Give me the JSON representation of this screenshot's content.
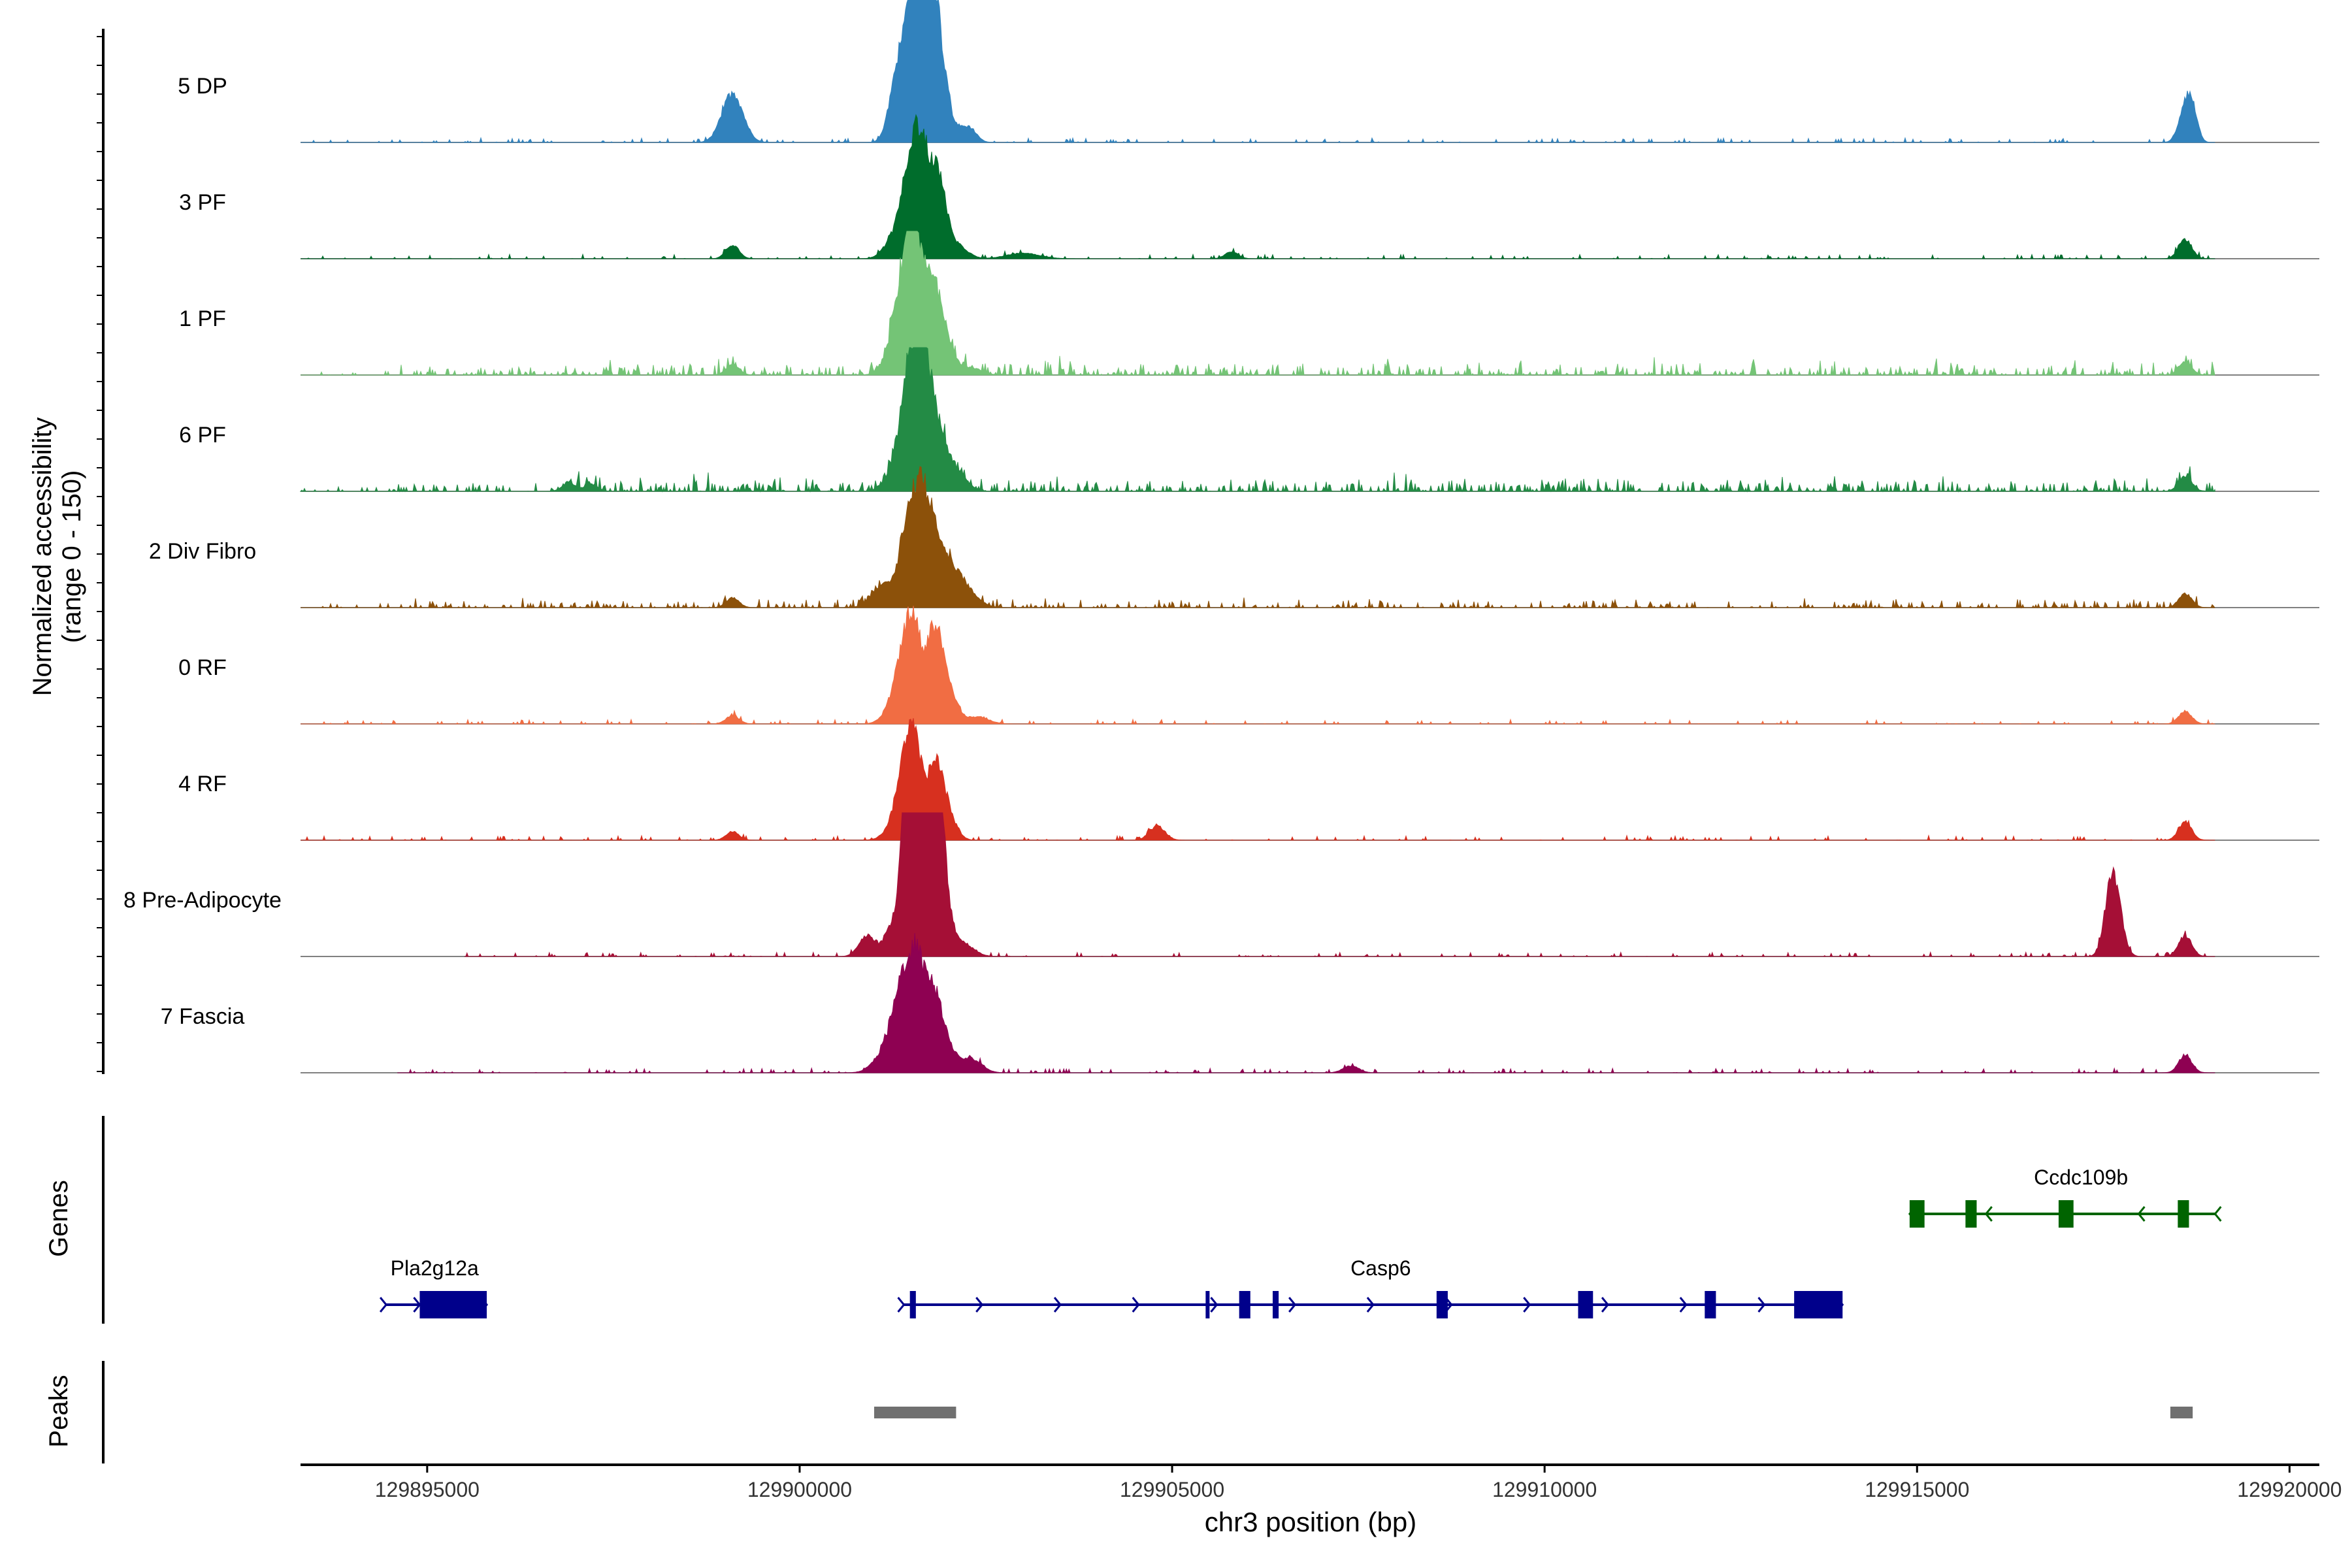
{
  "chart_data": {
    "type": "area",
    "title": "",
    "xlabel": "chr3 position (bp)",
    "ylabel": "Normalized accessibility",
    "ylabel_sub": "(range 0 - 150)",
    "xlim": [
      129893300,
      129920400
    ],
    "ylim": [
      0,
      150
    ],
    "x_ticks": [
      129895000,
      129900000,
      129905000,
      129910000,
      129915000,
      129920000
    ],
    "x_tick_labels": [
      "129895000",
      "129900000",
      "129905000",
      "129910000",
      "129915000",
      "129920000"
    ],
    "grid": false,
    "background": [
      [
        129894600,
        129919000,
        2,
        4,
        11
      ],
      [
        129896800,
        129919000,
        2,
        3,
        17
      ]
    ],
    "series": [
      {
        "name": "5 DP",
        "color": "#3182bd",
        "baseline_start": 129893300,
        "peaks": [
          [
            129899100,
            70,
            16
          ],
          [
            129901300,
            85,
            12
          ],
          [
            129901500,
            148,
            12
          ],
          [
            129901700,
            125,
            10
          ],
          [
            129901650,
            100,
            16
          ],
          [
            129901750,
            110,
            10
          ],
          [
            129901900,
            95,
            10
          ],
          [
            129902100,
            20,
            16
          ],
          [
            129902300,
            14,
            10
          ],
          [
            129918600,
            50,
            10
          ],
          [
            129918700,
            35,
            8
          ]
        ]
      },
      {
        "name": "3 PF",
        "color": "#006d2c",
        "baseline_start": 129893300,
        "peaks": [
          [
            129899100,
            20,
            10
          ],
          [
            129901300,
            35,
            16
          ],
          [
            129901500,
            135,
            12
          ],
          [
            129901650,
            105,
            10
          ],
          [
            129901800,
            75,
            12
          ],
          [
            129901900,
            60,
            10
          ],
          [
            129902100,
            20,
            16
          ],
          [
            129903000,
            8,
            25
          ],
          [
            129905800,
            10,
            10
          ],
          [
            129918600,
            28,
            10
          ]
        ]
      },
      {
        "name": "1 PF",
        "color": "#74c476",
        "baseline_start": 129893300,
        "peaks": [
          [
            129899100,
            15,
            10
          ],
          [
            129901300,
            45,
            16
          ],
          [
            129901450,
            138,
            14
          ],
          [
            129901550,
            95,
            10
          ],
          [
            129901700,
            50,
            10
          ],
          [
            129901800,
            90,
            12
          ],
          [
            129901950,
            45,
            14
          ],
          [
            129902300,
            10,
            16
          ],
          [
            129918600,
            18,
            10
          ]
        ]
      },
      {
        "name": "6 PF",
        "color": "#238b45",
        "baseline_start": 129893300,
        "peaks": [
          [
            129901300,
            30,
            16
          ],
          [
            129901500,
            168,
            14
          ],
          [
            129901650,
            100,
            12
          ],
          [
            129901750,
            70,
            12
          ],
          [
            129901900,
            45,
            14
          ],
          [
            129902100,
            25,
            16
          ],
          [
            129896900,
            12,
            10
          ],
          [
            129897200,
            10,
            10
          ],
          [
            129918600,
            22,
            10
          ]
        ]
      },
      {
        "name": "2 Div Fibro",
        "color": "#8c510a",
        "baseline_start": 129893300,
        "peaks": [
          [
            129899100,
            14,
            10
          ],
          [
            129901100,
            30,
            16
          ],
          [
            129901500,
            135,
            16
          ],
          [
            129901700,
            100,
            14
          ],
          [
            129901900,
            55,
            16
          ],
          [
            129902100,
            30,
            16
          ],
          [
            129902300,
            15,
            16
          ],
          [
            129918600,
            20,
            10
          ]
        ]
      },
      {
        "name": "0 RF",
        "color": "#f16d43",
        "baseline_start": 129893300,
        "peaks": [
          [
            129899100,
            12,
            10
          ],
          [
            129901300,
            30,
            16
          ],
          [
            129901450,
            100,
            14
          ],
          [
            129901550,
            70,
            10
          ],
          [
            129901750,
            62,
            10
          ],
          [
            129901850,
            85,
            12
          ],
          [
            129902000,
            40,
            14
          ],
          [
            129902400,
            10,
            16
          ],
          [
            129918600,
            18,
            10
          ]
        ]
      },
      {
        "name": "4 RF",
        "color": "#d7301f",
        "baseline_start": 129893300,
        "peaks": [
          [
            129899100,
            12,
            10
          ],
          [
            129901300,
            20,
            16
          ],
          [
            129901450,
            110,
            14
          ],
          [
            129901550,
            75,
            10
          ],
          [
            129901800,
            88,
            12
          ],
          [
            129901950,
            45,
            14
          ],
          [
            129904800,
            20,
            12
          ],
          [
            129918600,
            26,
            10
          ]
        ]
      },
      {
        "name": "8 Pre-Adipocyte",
        "color": "#a50f36",
        "baseline_start": 129895500,
        "peaks": [
          [
            129900900,
            30,
            12
          ],
          [
            129901250,
            45,
            12
          ],
          [
            129901450,
            130,
            10
          ],
          [
            129901500,
            200,
            10
          ],
          [
            129901550,
            150,
            10
          ],
          [
            129901650,
            90,
            10
          ],
          [
            129901800,
            100,
            10
          ],
          [
            129901850,
            155,
            10
          ],
          [
            129901950,
            55,
            12
          ],
          [
            129902200,
            18,
            16
          ],
          [
            129917600,
            90,
            10
          ],
          [
            129917700,
            45,
            10
          ],
          [
            129918600,
            30,
            10
          ]
        ]
      },
      {
        "name": "7 Fascia",
        "color": "#8e0152",
        "baseline_start": 129894600,
        "peaks": [
          [
            129901100,
            20,
            16
          ],
          [
            129901300,
            40,
            14
          ],
          [
            129901450,
            115,
            16
          ],
          [
            129901600,
            90,
            12
          ],
          [
            129901800,
            85,
            12
          ],
          [
            129901950,
            40,
            14
          ],
          [
            129902300,
            20,
            16
          ],
          [
            129907400,
            10,
            12
          ],
          [
            129918600,
            25,
            10
          ]
        ]
      }
    ],
    "genes": [
      {
        "name": "Pla2g12a",
        "strand": "+",
        "color": "#00008b",
        "row": 2,
        "start": 129894450,
        "end": 129895800,
        "exons": [
          [
            129894900,
            129895800
          ]
        ]
      },
      {
        "name": "Casp6",
        "strand": "+",
        "color": "#00008b",
        "row": 2,
        "start": 129901400,
        "end": 129914000,
        "exons": [
          [
            129901480,
            129901560
          ],
          [
            129905450,
            129905500
          ],
          [
            129905900,
            129906050
          ],
          [
            129906350,
            129906430
          ],
          [
            129908550,
            129908700
          ],
          [
            129910450,
            129910650
          ],
          [
            129912150,
            129912300
          ],
          [
            129913350,
            129914000
          ]
        ]
      },
      {
        "name": "Ccdc109b",
        "strand": "-",
        "color": "#006400",
        "row": 1,
        "start": 129914900,
        "end": 129919000,
        "exons": [
          [
            129914900,
            129915100
          ],
          [
            129915650,
            129915800
          ],
          [
            129916900,
            129917100
          ],
          [
            129918500,
            129918650
          ]
        ]
      }
    ],
    "peaks_track": [
      [
        129901000,
        129902100
      ],
      [
        129918400,
        129918700
      ]
    ],
    "track_labels": [
      "Genes",
      "Peaks"
    ]
  }
}
